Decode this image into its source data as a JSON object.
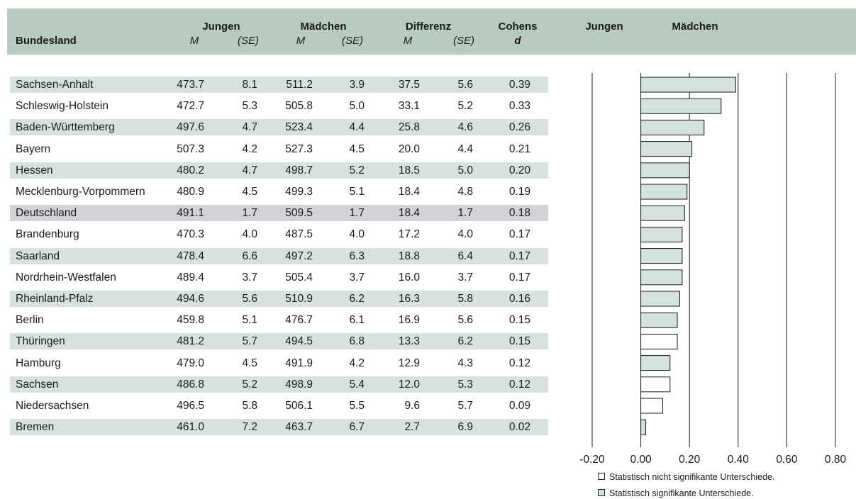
{
  "header": {
    "bundesland": "Bundesland",
    "jungen": "Jungen",
    "maedchen": "Mädchen",
    "differenz": "Differenz",
    "cohens": "Cohens",
    "d": "d",
    "M": "M",
    "SE": "(SE)",
    "chart_jungen": "Jungen",
    "chart_maedchen": "Mädchen"
  },
  "rows": [
    {
      "name": "Sachsen-Anhalt",
      "j_m": "473.7",
      "j_se": "8.1",
      "m_m": "511.2",
      "m_se": "3.9",
      "d_m": "37.5",
      "d_se": "5.6",
      "d": "0.39"
    },
    {
      "name": "Schleswig-Holstein",
      "j_m": "472.7",
      "j_se": "5.3",
      "m_m": "505.8",
      "m_se": "5.0",
      "d_m": "33.1",
      "d_se": "5.2",
      "d": "0.33"
    },
    {
      "name": "Baden-Württemberg",
      "j_m": "497.6",
      "j_se": "4.7",
      "m_m": "523.4",
      "m_se": "4.4",
      "d_m": "25.8",
      "d_se": "4.6",
      "d": "0.26"
    },
    {
      "name": "Bayern",
      "j_m": "507.3",
      "j_se": "4.2",
      "m_m": "527.3",
      "m_se": "4.5",
      "d_m": "20.0",
      "d_se": "4.4",
      "d": "0.21"
    },
    {
      "name": "Hessen",
      "j_m": "480.2",
      "j_se": "4.7",
      "m_m": "498.7",
      "m_se": "5.2",
      "d_m": "18.5",
      "d_se": "5.0",
      "d": "0.20"
    },
    {
      "name": "Mecklenburg-Vorpommern",
      "j_m": "480.9",
      "j_se": "4.5",
      "m_m": "499.3",
      "m_se": "5.1",
      "d_m": "18.4",
      "d_se": "4.8",
      "d": "0.19"
    },
    {
      "name": "Deutschland",
      "j_m": "491.1",
      "j_se": "1.7",
      "m_m": "509.5",
      "m_se": "1.7",
      "d_m": "18.4",
      "d_se": "1.7",
      "d": "0.18"
    },
    {
      "name": "Brandenburg",
      "j_m": "470.3",
      "j_se": "4.0",
      "m_m": "487.5",
      "m_se": "4.0",
      "d_m": "17.2",
      "d_se": "4.0",
      "d": "0.17"
    },
    {
      "name": "Saarland",
      "j_m": "478.4",
      "j_se": "6.6",
      "m_m": "497.2",
      "m_se": "6.3",
      "d_m": "18.8",
      "d_se": "6.4",
      "d": "0.17"
    },
    {
      "name": "Nordrhein-Westfalen",
      "j_m": "489.4",
      "j_se": "3.7",
      "m_m": "505.4",
      "m_se": "3.7",
      "d_m": "16.0",
      "d_se": "3.7",
      "d": "0.17"
    },
    {
      "name": "Rheinland-Pfalz",
      "j_m": "494.6",
      "j_se": "5.6",
      "m_m": "510.9",
      "m_se": "6.2",
      "d_m": "16.3",
      "d_se": "5.8",
      "d": "0.16"
    },
    {
      "name": "Berlin",
      "j_m": "459.8",
      "j_se": "5.1",
      "m_m": "476.7",
      "m_se": "6.1",
      "d_m": "16.9",
      "d_se": "5.6",
      "d": "0.15"
    },
    {
      "name": "Thüringen",
      "j_m": "481.2",
      "j_se": "5.7",
      "m_m": "494.5",
      "m_se": "6.8",
      "d_m": "13.3",
      "d_se": "6.2",
      "d": "0.15"
    },
    {
      "name": "Hamburg",
      "j_m": "479.0",
      "j_se": "4.5",
      "m_m": "491.9",
      "m_se": "4.2",
      "d_m": "12.9",
      "d_se": "4.3",
      "d": "0.12"
    },
    {
      "name": "Sachsen",
      "j_m": "486.8",
      "j_se": "5.2",
      "m_m": "498.9",
      "m_se": "5.4",
      "d_m": "12.0",
      "d_se": "5.3",
      "d": "0.12"
    },
    {
      "name": "Niedersachsen",
      "j_m": "496.5",
      "j_se": "5.8",
      "m_m": "506.1",
      "m_se": "5.5",
      "d_m": "9.6",
      "d_se": "5.7",
      "d": "0.09"
    },
    {
      "name": "Bremen",
      "j_m": "461.0",
      "j_se": "7.2",
      "m_m": "463.7",
      "m_se": "6.7",
      "d_m": "2.7",
      "d_se": "6.9",
      "d": "0.02"
    }
  ],
  "chart_data": {
    "type": "bar",
    "orientation": "horizontal",
    "categories": [
      "Sachsen-Anhalt",
      "Schleswig-Holstein",
      "Baden-Württemberg",
      "Bayern",
      "Hessen",
      "Mecklenburg-Vorpommern",
      "Deutschland",
      "Brandenburg",
      "Saarland",
      "Nordrhein-Westfalen",
      "Rheinland-Pfalz",
      "Berlin",
      "Thüringen",
      "Hamburg",
      "Sachsen",
      "Niedersachsen",
      "Bremen"
    ],
    "values": [
      0.39,
      0.33,
      0.26,
      0.21,
      0.2,
      0.19,
      0.18,
      0.17,
      0.17,
      0.17,
      0.16,
      0.15,
      0.15,
      0.12,
      0.12,
      0.09,
      0.02
    ],
    "significant": [
      true,
      true,
      true,
      true,
      true,
      true,
      true,
      true,
      true,
      true,
      true,
      true,
      false,
      true,
      false,
      false,
      true
    ],
    "xlim": [
      -0.2,
      0.8
    ],
    "x_ticks": [
      "-0.20",
      "0.00",
      "0.20",
      "0.40",
      "0.60",
      "0.80"
    ],
    "grid": true,
    "colors": {
      "significant": "#d5e1db",
      "not_significant": "#ffffff",
      "outline": "#1a1a1a"
    },
    "legend": [
      {
        "label": "Statistisch nicht signifikante Unterschiede.",
        "color": "#ffffff"
      },
      {
        "label": "Statistisch signifikante Unterschiede.",
        "color": "#d5e1db"
      }
    ]
  }
}
